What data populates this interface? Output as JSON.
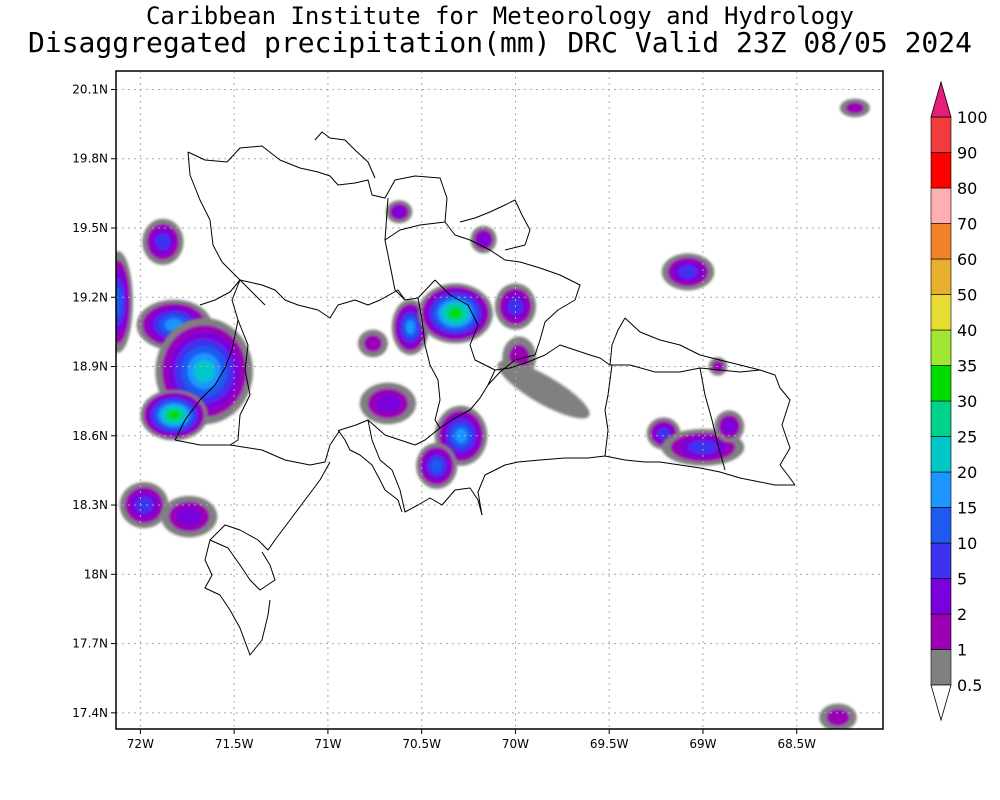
{
  "title": {
    "line1": "Caribbean Institute for Meteorology and Hydrology",
    "line2": "Disaggregated precipitation(mm) DRC Valid 23Z 08/05 2024"
  },
  "map": {
    "lon_range": [
      -72.13,
      -68.04
    ],
    "lat_range": [
      17.33,
      20.18
    ],
    "lat_ticks": [
      {
        "value": 20.1,
        "label": "20.1N"
      },
      {
        "value": 19.8,
        "label": "19.8N"
      },
      {
        "value": 19.5,
        "label": "19.5N"
      },
      {
        "value": 19.2,
        "label": "19.2N"
      },
      {
        "value": 18.9,
        "label": "18.9N"
      },
      {
        "value": 18.6,
        "label": "18.6N"
      },
      {
        "value": 18.3,
        "label": "18.3N"
      },
      {
        "value": 18.0,
        "label": "18N"
      },
      {
        "value": 17.7,
        "label": "17.7N"
      },
      {
        "value": 17.4,
        "label": "17.4N"
      }
    ],
    "lon_ticks": [
      {
        "value": -72.0,
        "label": "72W"
      },
      {
        "value": -71.5,
        "label": "71.5W"
      },
      {
        "value": -71.0,
        "label": "71W"
      },
      {
        "value": -70.5,
        "label": "70.5W"
      },
      {
        "value": -70.0,
        "label": "70W"
      },
      {
        "value": -69.5,
        "label": "69.5W"
      },
      {
        "value": -69.0,
        "label": "69W"
      },
      {
        "value": -68.5,
        "label": "68.5W"
      }
    ],
    "grid": "dotted"
  },
  "colorbar": {
    "levels": [
      {
        "label": "0.5",
        "color": "#ffffff"
      },
      {
        "label": "1",
        "color": "#808080"
      },
      {
        "label": "2",
        "color": "#9a00b4"
      },
      {
        "label": "5",
        "color": "#7a00dc"
      },
      {
        "label": "10",
        "color": "#3c32f0"
      },
      {
        "label": "15",
        "color": "#1e5af0"
      },
      {
        "label": "20",
        "color": "#1e96ff"
      },
      {
        "label": "25",
        "color": "#00c8c8"
      },
      {
        "label": "30",
        "color": "#00d28c"
      },
      {
        "label": "35",
        "color": "#00dc00"
      },
      {
        "label": "40",
        "color": "#a0e632"
      },
      {
        "label": "50",
        "color": "#e6dc32"
      },
      {
        "label": "60",
        "color": "#e6af2d"
      },
      {
        "label": "70",
        "color": "#f08228"
      },
      {
        "label": "80",
        "color": "#ffafaf"
      },
      {
        "label": "90",
        "color": "#ff0000"
      },
      {
        "label": "100",
        "color": "#f03c3c"
      }
    ],
    "top_arrow_color": "#e61e78"
  },
  "rain_cells": [
    {
      "lon": -71.88,
      "lat": 19.44,
      "rx": 0.11,
      "ry": 0.1,
      "peak": 3
    },
    {
      "lon": -72.12,
      "lat": 19.18,
      "rx": 0.08,
      "ry": 0.22,
      "peak": 4
    },
    {
      "lon": -71.82,
      "lat": 19.08,
      "rx": 0.2,
      "ry": 0.11,
      "peak": 5
    },
    {
      "lon": -71.66,
      "lat": 18.88,
      "rx": 0.26,
      "ry": 0.23,
      "peak": 6
    },
    {
      "lon": -71.82,
      "lat": 18.69,
      "rx": 0.18,
      "ry": 0.11,
      "peak": 8
    },
    {
      "lon": -71.98,
      "lat": 18.3,
      "rx": 0.13,
      "ry": 0.1,
      "peak": 3
    },
    {
      "lon": -71.74,
      "lat": 18.25,
      "rx": 0.15,
      "ry": 0.09,
      "peak": 2
    },
    {
      "lon": -70.56,
      "lat": 19.07,
      "rx": 0.1,
      "ry": 0.12,
      "peak": 5
    },
    {
      "lon": -70.32,
      "lat": 19.13,
      "rx": 0.2,
      "ry": 0.13,
      "peak": 8
    },
    {
      "lon": -70.0,
      "lat": 19.16,
      "rx": 0.11,
      "ry": 0.1,
      "peak": 3
    },
    {
      "lon": -69.98,
      "lat": 18.94,
      "rx": 0.09,
      "ry": 0.09,
      "peak": 1
    },
    {
      "lon": -70.68,
      "lat": 18.74,
      "rx": 0.15,
      "ry": 0.09,
      "peak": 2
    },
    {
      "lon": -70.29,
      "lat": 18.6,
      "rx": 0.14,
      "ry": 0.13,
      "peak": 5
    },
    {
      "lon": -70.42,
      "lat": 18.47,
      "rx": 0.11,
      "ry": 0.1,
      "peak": 4
    },
    {
      "lon": -70.76,
      "lat": 19.0,
      "rx": 0.08,
      "ry": 0.06,
      "peak": 1
    },
    {
      "lon": -70.17,
      "lat": 19.45,
      "rx": 0.07,
      "ry": 0.06,
      "peak": 2
    },
    {
      "lon": -70.62,
      "lat": 19.57,
      "rx": 0.07,
      "ry": 0.05,
      "peak": 2
    },
    {
      "lon": -69.08,
      "lat": 19.31,
      "rx": 0.14,
      "ry": 0.08,
      "peak": 3
    },
    {
      "lon": -69.21,
      "lat": 18.61,
      "rx": 0.09,
      "ry": 0.07,
      "peak": 3
    },
    {
      "lon": -69.0,
      "lat": 18.55,
      "rx": 0.22,
      "ry": 0.08,
      "peak": 3
    },
    {
      "lon": -68.86,
      "lat": 18.64,
      "rx": 0.08,
      "ry": 0.07,
      "peak": 2
    },
    {
      "lon": -68.92,
      "lat": 18.9,
      "rx": 0.05,
      "ry": 0.04,
      "peak": 1
    },
    {
      "lon": -68.28,
      "lat": 17.38,
      "rx": 0.1,
      "ry": 0.06,
      "peak": 1
    },
    {
      "lon": -68.19,
      "lat": 20.02,
      "rx": 0.08,
      "ry": 0.04,
      "peak": 1
    },
    {
      "lon": -69.85,
      "lat": 18.8,
      "rx": 0.28,
      "ry": 0.06,
      "peak": 0,
      "angle": 30
    }
  ]
}
